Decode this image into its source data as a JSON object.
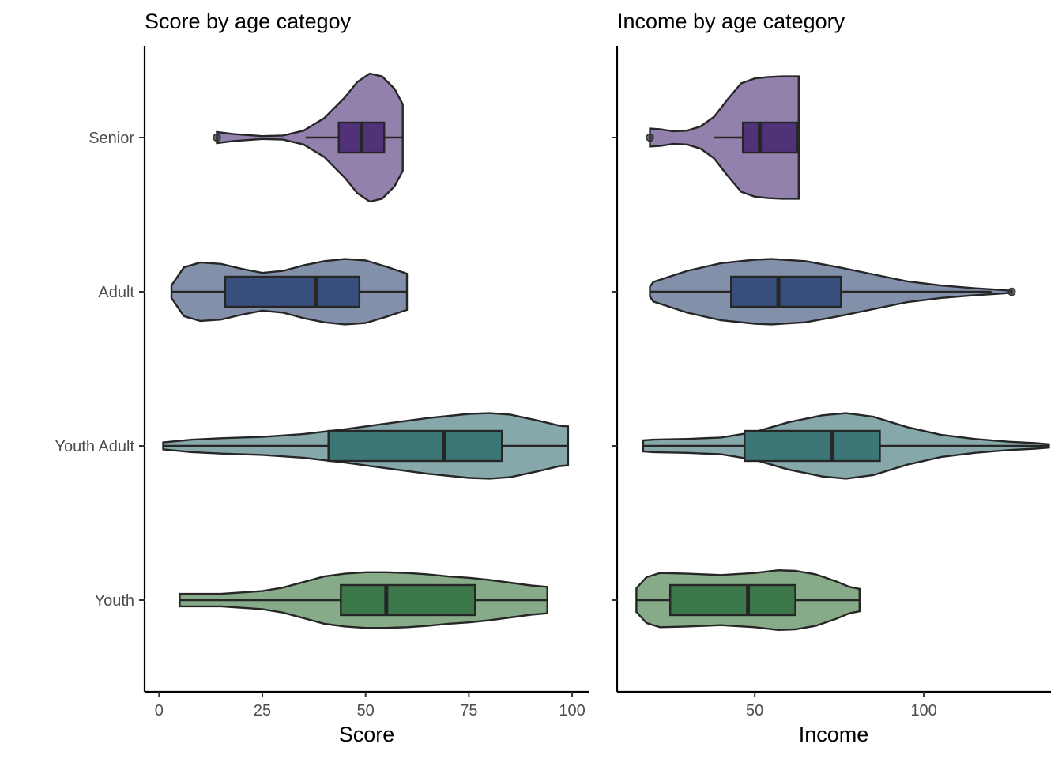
{
  "chart_data": [
    {
      "type": "violin",
      "title": "Score by age categoy",
      "xlabel": "Score",
      "ylabel": "",
      "xlim": [
        -3.5,
        104
      ],
      "x_ticks": [
        0,
        25,
        50,
        75,
        100
      ],
      "x_tick_labels": [
        "0",
        "25",
        "50",
        "75",
        "100"
      ],
      "categories": [
        "Senior",
        "Adult",
        "Youth Adult",
        "Youth"
      ],
      "series": [
        {
          "category": "Senior",
          "fill": "#9281ac",
          "box_fill": "#513278",
          "min": 14,
          "max": 59,
          "box": {
            "q1": 43.5,
            "median": 49,
            "q3": 54.5,
            "whisker_low": 35.5,
            "whisker_high": 59
          },
          "outliers": [
            14
          ],
          "density": [
            [
              14,
              0.08
            ],
            [
              18,
              0.05
            ],
            [
              25,
              0.02
            ],
            [
              30,
              0.03
            ],
            [
              35,
              0.1
            ],
            [
              40,
              0.28
            ],
            [
              45,
              0.58
            ],
            [
              48,
              0.8
            ],
            [
              51,
              0.92
            ],
            [
              54,
              0.88
            ],
            [
              57,
              0.7
            ],
            [
              59,
              0.48
            ]
          ]
        },
        {
          "category": "Adult",
          "fill": "#8390aa",
          "box_fill": "#384e7c",
          "min": 3,
          "max": 60,
          "box": {
            "q1": 16,
            "median": 38,
            "q3": 48.5,
            "whisker_low": 3,
            "whisker_high": 60
          },
          "outliers": [],
          "density": [
            [
              3,
              0.09
            ],
            [
              6,
              0.35
            ],
            [
              10,
              0.42
            ],
            [
              15,
              0.4
            ],
            [
              20,
              0.33
            ],
            [
              25,
              0.27
            ],
            [
              30,
              0.3
            ],
            [
              35,
              0.38
            ],
            [
              40,
              0.44
            ],
            [
              45,
              0.47
            ],
            [
              50,
              0.45
            ],
            [
              55,
              0.36
            ],
            [
              60,
              0.26
            ]
          ]
        },
        {
          "category": "Youth Adult",
          "fill": "#86a8ab",
          "box_fill": "#3d7676",
          "min": 1,
          "max": 99,
          "box": {
            "q1": 41,
            "median": 69,
            "q3": 83,
            "whisker_low": 1,
            "whisker_high": 99
          },
          "outliers": [],
          "density": [
            [
              1,
              0.05
            ],
            [
              8,
              0.09
            ],
            [
              15,
              0.11
            ],
            [
              25,
              0.13
            ],
            [
              35,
              0.17
            ],
            [
              45,
              0.24
            ],
            [
              55,
              0.32
            ],
            [
              65,
              0.4
            ],
            [
              75,
              0.46
            ],
            [
              80,
              0.47
            ],
            [
              85,
              0.45
            ],
            [
              92,
              0.36
            ],
            [
              97,
              0.29
            ],
            [
              99,
              0.28
            ]
          ]
        },
        {
          "category": "Youth",
          "fill": "#87aa89",
          "box_fill": "#3c7849",
          "min": 5,
          "max": 94,
          "box": {
            "q1": 44,
            "median": 55,
            "q3": 76.5,
            "whisker_low": 5,
            "whisker_high": 94
          },
          "outliers": [],
          "density": [
            [
              5,
              0.09
            ],
            [
              10,
              0.09
            ],
            [
              15,
              0.09
            ],
            [
              20,
              0.11
            ],
            [
              25,
              0.13
            ],
            [
              30,
              0.18
            ],
            [
              35,
              0.26
            ],
            [
              40,
              0.34
            ],
            [
              45,
              0.38
            ],
            [
              50,
              0.4
            ],
            [
              55,
              0.4
            ],
            [
              60,
              0.39
            ],
            [
              65,
              0.37
            ],
            [
              70,
              0.34
            ],
            [
              75,
              0.32
            ],
            [
              80,
              0.29
            ],
            [
              85,
              0.25
            ],
            [
              90,
              0.21
            ],
            [
              94,
              0.19
            ]
          ]
        }
      ]
    },
    {
      "type": "violin",
      "title": "Income by age category",
      "xlabel": "Income",
      "ylabel": "",
      "xlim": [
        9.3,
        137.6
      ],
      "x_ticks": [
        50,
        100
      ],
      "x_tick_labels": [
        "50",
        "100"
      ],
      "categories": [
        "Senior",
        "Adult",
        "Youth Adult",
        "Youth"
      ],
      "series": [
        {
          "category": "Senior",
          "fill": "#9281ac",
          "box_fill": "#513278",
          "min": 19,
          "max": 63,
          "box": {
            "q1": 46.5,
            "median": 51.5,
            "q3": 62.5,
            "whisker_low": 38,
            "whisker_high": 62.5
          },
          "outliers": [
            19
          ],
          "density": [
            [
              19,
              0.13
            ],
            [
              22,
              0.12
            ],
            [
              26,
              0.09
            ],
            [
              30,
              0.1
            ],
            [
              34,
              0.16
            ],
            [
              38,
              0.3
            ],
            [
              42,
              0.55
            ],
            [
              46,
              0.78
            ],
            [
              50,
              0.85
            ],
            [
              54,
              0.87
            ],
            [
              58,
              0.88
            ],
            [
              61,
              0.88
            ],
            [
              63,
              0.88
            ]
          ]
        },
        {
          "category": "Adult",
          "fill": "#8390aa",
          "box_fill": "#384e7c",
          "min": 19,
          "max": 126,
          "box": {
            "q1": 43,
            "median": 57,
            "q3": 75.5,
            "whisker_low": 19,
            "whisker_high": 120
          },
          "outliers": [
            126
          ],
          "density": [
            [
              19,
              0.07
            ],
            [
              20,
              0.14
            ],
            [
              25,
              0.22
            ],
            [
              30,
              0.3
            ],
            [
              40,
              0.41
            ],
            [
              50,
              0.46
            ],
            [
              55,
              0.47
            ],
            [
              65,
              0.44
            ],
            [
              75,
              0.35
            ],
            [
              85,
              0.25
            ],
            [
              95,
              0.15
            ],
            [
              105,
              0.09
            ],
            [
              115,
              0.05
            ],
            [
              122,
              0.03
            ],
            [
              126,
              0.015
            ]
          ]
        },
        {
          "category": "Youth Adult",
          "fill": "#86a8ab",
          "box_fill": "#3d7676",
          "min": 17,
          "max": 137,
          "box": {
            "q1": 47,
            "median": 73,
            "q3": 87,
            "whisker_low": 17,
            "whisker_high": 137
          },
          "outliers": [],
          "density": [
            [
              17,
              0.08
            ],
            [
              20,
              0.09
            ],
            [
              30,
              0.1
            ],
            [
              40,
              0.12
            ],
            [
              50,
              0.2
            ],
            [
              60,
              0.34
            ],
            [
              70,
              0.44
            ],
            [
              77,
              0.47
            ],
            [
              85,
              0.42
            ],
            [
              95,
              0.27
            ],
            [
              105,
              0.16
            ],
            [
              115,
              0.1
            ],
            [
              125,
              0.06
            ],
            [
              133,
              0.04
            ],
            [
              137,
              0.025
            ]
          ]
        },
        {
          "category": "Youth",
          "fill": "#87aa89",
          "box_fill": "#3c7849",
          "min": 15,
          "max": 81,
          "box": {
            "q1": 25,
            "median": 48,
            "q3": 62,
            "whisker_low": 15,
            "whisker_high": 81
          },
          "outliers": [],
          "density": [
            [
              15,
              0.17
            ],
            [
              18,
              0.33
            ],
            [
              22,
              0.39
            ],
            [
              30,
              0.38
            ],
            [
              40,
              0.36
            ],
            [
              50,
              0.39
            ],
            [
              57,
              0.43
            ],
            [
              62,
              0.42
            ],
            [
              68,
              0.37
            ],
            [
              74,
              0.27
            ],
            [
              78,
              0.19
            ],
            [
              81,
              0.16
            ]
          ]
        }
      ]
    }
  ]
}
